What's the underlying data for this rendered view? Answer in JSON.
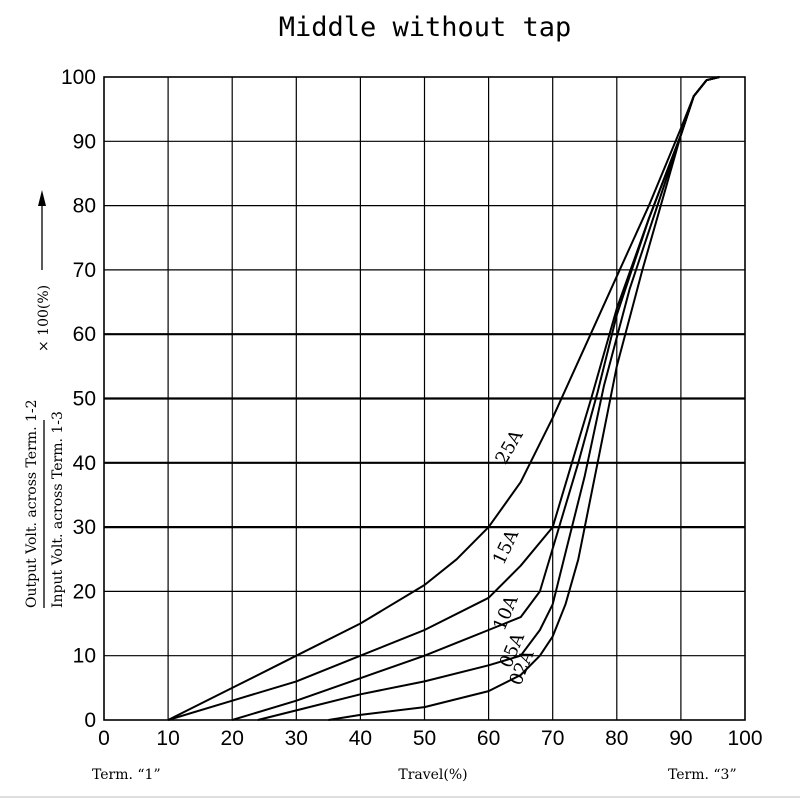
{
  "chart_data": {
    "type": "line",
    "title": "Middle without tap",
    "xlabel": "Travel(%)",
    "x_endpoint_labels": {
      "left": "Term. “1”",
      "right": "Term. “3”"
    },
    "ylabel": {
      "numerator": "Output Volt. across Term. 1-2",
      "denominator": "Input Volt. across Term. 1-3",
      "suffix": "× 100(%)"
    },
    "xlim": [
      0,
      100
    ],
    "ylim": [
      0,
      100
    ],
    "x_ticks": [
      "0",
      "10",
      "20",
      "30",
      "40",
      "50",
      "60",
      "70",
      "80",
      "90",
      "100"
    ],
    "y_ticks": [
      "0",
      "10",
      "20",
      "30",
      "40",
      "50",
      "60",
      "70",
      "80",
      "90",
      "100"
    ],
    "grid": true,
    "series": [
      {
        "name": "25A",
        "points": [
          [
            10,
            0
          ],
          [
            20,
            5
          ],
          [
            30,
            10
          ],
          [
            40,
            15
          ],
          [
            50,
            21
          ],
          [
            55,
            25
          ],
          [
            60,
            30
          ],
          [
            65,
            37
          ],
          [
            70,
            47
          ],
          [
            75,
            58
          ],
          [
            80,
            69
          ],
          [
            85,
            80
          ],
          [
            90,
            92
          ],
          [
            92,
            97
          ],
          [
            94,
            99.5
          ],
          [
            96,
            100
          ]
        ]
      },
      {
        "name": "15A",
        "points": [
          [
            10,
            0
          ],
          [
            20,
            3
          ],
          [
            30,
            6
          ],
          [
            40,
            10
          ],
          [
            50,
            14
          ],
          [
            60,
            19
          ],
          [
            65,
            24
          ],
          [
            70,
            30
          ],
          [
            73,
            40
          ],
          [
            76,
            50
          ],
          [
            80,
            64
          ],
          [
            85,
            78
          ],
          [
            90,
            91
          ],
          [
            92,
            97
          ],
          [
            94,
            99.5
          ],
          [
            96,
            100
          ]
        ]
      },
      {
        "name": "10A",
        "points": [
          [
            20,
            0
          ],
          [
            30,
            3
          ],
          [
            40,
            6.5
          ],
          [
            50,
            10
          ],
          [
            60,
            14
          ],
          [
            65,
            16
          ],
          [
            68,
            20
          ],
          [
            71,
            30
          ],
          [
            74,
            40
          ],
          [
            77,
            51
          ],
          [
            80,
            63
          ],
          [
            85,
            78
          ],
          [
            90,
            91
          ],
          [
            92,
            97
          ],
          [
            94,
            99.5
          ],
          [
            96,
            100
          ]
        ]
      },
      {
        "name": "05A",
        "points": [
          [
            24,
            0
          ],
          [
            30,
            1.5
          ],
          [
            40,
            4
          ],
          [
            50,
            6
          ],
          [
            60,
            8.5
          ],
          [
            65,
            10
          ],
          [
            68,
            14
          ],
          [
            70,
            18
          ],
          [
            72,
            26
          ],
          [
            75,
            38
          ],
          [
            78,
            52
          ],
          [
            82,
            67
          ],
          [
            86,
            79
          ],
          [
            90,
            91
          ],
          [
            92,
            97
          ],
          [
            94,
            99.5
          ],
          [
            96,
            100
          ]
        ]
      },
      {
        "name": "02A",
        "points": [
          [
            35,
            0
          ],
          [
            40,
            0.8
          ],
          [
            50,
            2
          ],
          [
            60,
            4.5
          ],
          [
            65,
            7
          ],
          [
            68,
            10
          ],
          [
            70,
            13
          ],
          [
            72,
            18
          ],
          [
            74,
            25
          ],
          [
            77,
            40
          ],
          [
            80,
            55
          ],
          [
            84,
            70
          ],
          [
            88,
            84
          ],
          [
            90,
            91
          ],
          [
            92,
            97
          ],
          [
            94,
            99.5
          ],
          [
            96,
            100
          ]
        ]
      }
    ],
    "curve_labels": [
      {
        "series": "25A",
        "text": "25A",
        "at": [
          64,
          42
        ],
        "angle": -60
      },
      {
        "series": "15A",
        "text": "15A",
        "at": [
          63.5,
          26.5
        ],
        "angle": -65
      },
      {
        "series": "10A",
        "text": "10A",
        "at": [
          63.5,
          16.3
        ],
        "angle": -67
      },
      {
        "series": "05A",
        "text": "05A",
        "at": [
          64.5,
          10.5
        ],
        "angle": -67
      },
      {
        "series": "02A",
        "text": "02A",
        "at": [
          66,
          7.8
        ],
        "angle": -68
      }
    ]
  }
}
